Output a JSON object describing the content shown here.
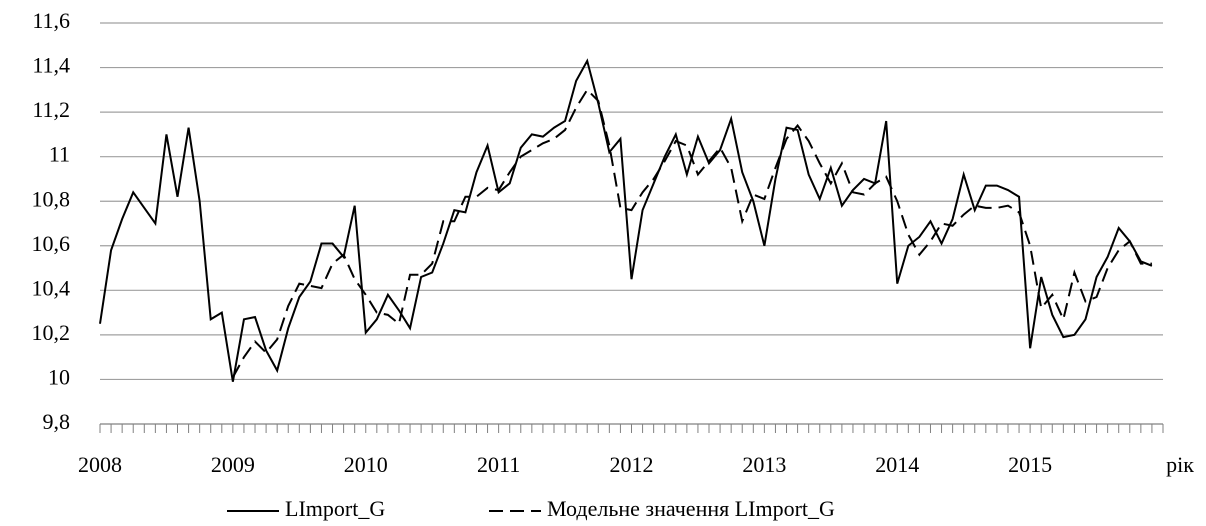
{
  "chart_data": {
    "type": "line",
    "x_label": "рік",
    "categories": [
      "2008",
      null,
      null,
      null,
      null,
      null,
      null,
      null,
      null,
      null,
      null,
      null,
      "2009",
      null,
      null,
      null,
      null,
      null,
      null,
      null,
      null,
      null,
      null,
      null,
      "2010",
      null,
      null,
      null,
      null,
      null,
      null,
      null,
      null,
      null,
      null,
      null,
      "2011",
      null,
      null,
      null,
      null,
      null,
      null,
      null,
      null,
      null,
      null,
      null,
      "2012",
      null,
      null,
      null,
      null,
      null,
      null,
      null,
      null,
      null,
      null,
      null,
      "2013",
      null,
      null,
      null,
      null,
      null,
      null,
      null,
      null,
      null,
      null,
      null,
      "2014",
      null,
      null,
      null,
      null,
      null,
      null,
      null,
      null,
      null,
      null,
      null,
      "2015",
      null,
      null,
      null,
      null,
      null,
      null,
      null,
      null,
      null,
      null,
      null
    ],
    "series": [
      {
        "name": "LImport_G",
        "color": "#000000",
        "dash": false,
        "values": [
          10.25,
          10.58,
          10.72,
          10.84,
          10.77,
          10.7,
          11.1,
          10.82,
          11.13,
          10.8,
          10.27,
          10.3,
          9.99,
          10.27,
          10.28,
          10.13,
          10.04,
          10.23,
          10.37,
          10.44,
          10.61,
          10.61,
          10.55,
          10.78,
          10.21,
          10.27,
          10.38,
          10.31,
          10.23,
          10.46,
          10.48,
          10.61,
          10.76,
          10.75,
          10.93,
          11.05,
          10.84,
          10.88,
          11.04,
          11.1,
          11.09,
          11.13,
          11.16,
          11.34,
          11.43,
          11.24,
          11.02,
          11.08,
          10.45,
          10.76,
          10.88,
          11.0,
          11.1,
          10.92,
          11.09,
          10.97,
          11.03,
          11.17,
          10.93,
          10.8,
          10.6,
          10.9,
          11.13,
          11.12,
          10.92,
          10.81,
          10.95,
          10.78,
          10.85,
          10.9,
          10.88,
          11.16,
          10.43,
          10.6,
          10.64,
          10.71,
          10.61,
          10.72,
          10.92,
          10.76,
          10.87,
          10.87,
          10.85,
          10.82,
          10.14,
          10.46,
          10.29,
          10.19,
          10.2,
          10.27,
          10.46,
          10.55,
          10.68,
          10.62,
          10.53,
          10.51
        ]
      },
      {
        "name": "Модельне значення LImport_G",
        "color": "#000000",
        "dash": true,
        "values": [
          null,
          null,
          null,
          null,
          null,
          null,
          null,
          null,
          null,
          null,
          null,
          null,
          10.01,
          10.1,
          10.17,
          10.12,
          10.18,
          10.33,
          10.43,
          10.42,
          10.41,
          10.52,
          10.56,
          10.45,
          10.38,
          10.3,
          10.29,
          10.25,
          10.47,
          10.47,
          10.52,
          10.71,
          10.71,
          10.82,
          10.82,
          10.86,
          10.85,
          10.93,
          11.0,
          11.03,
          11.06,
          11.08,
          11.12,
          11.22,
          11.3,
          11.25,
          11.05,
          10.77,
          10.76,
          10.84,
          10.9,
          10.98,
          11.07,
          11.05,
          10.92,
          10.98,
          11.04,
          10.95,
          10.71,
          10.83,
          10.81,
          10.95,
          11.08,
          11.14,
          11.07,
          10.97,
          10.88,
          10.97,
          10.84,
          10.83,
          10.88,
          10.91,
          10.8,
          10.65,
          10.56,
          10.62,
          10.7,
          10.69,
          10.74,
          10.78,
          10.77,
          10.77,
          10.78,
          10.75,
          10.6,
          10.32,
          10.38,
          10.27,
          10.48,
          10.35,
          10.37,
          10.5,
          10.58,
          10.62,
          10.52,
          10.52
        ]
      }
    ],
    "ylim": [
      9.8,
      11.6
    ],
    "yticks": [
      {
        "value": 9.8,
        "label": "9,8"
      },
      10,
      {
        "value": 10.2,
        "label": "10,2"
      },
      {
        "value": 10.4,
        "label": "10,4"
      },
      {
        "value": 10.6,
        "label": "10,6"
      },
      {
        "value": 10.8,
        "label": "10,8"
      },
      11,
      {
        "value": 11.2,
        "label": "11,2"
      },
      {
        "value": 11.4,
        "label": "11,4"
      },
      {
        "value": 11.6,
        "label": "11,6"
      }
    ],
    "grid": true,
    "legend": "bottom"
  }
}
